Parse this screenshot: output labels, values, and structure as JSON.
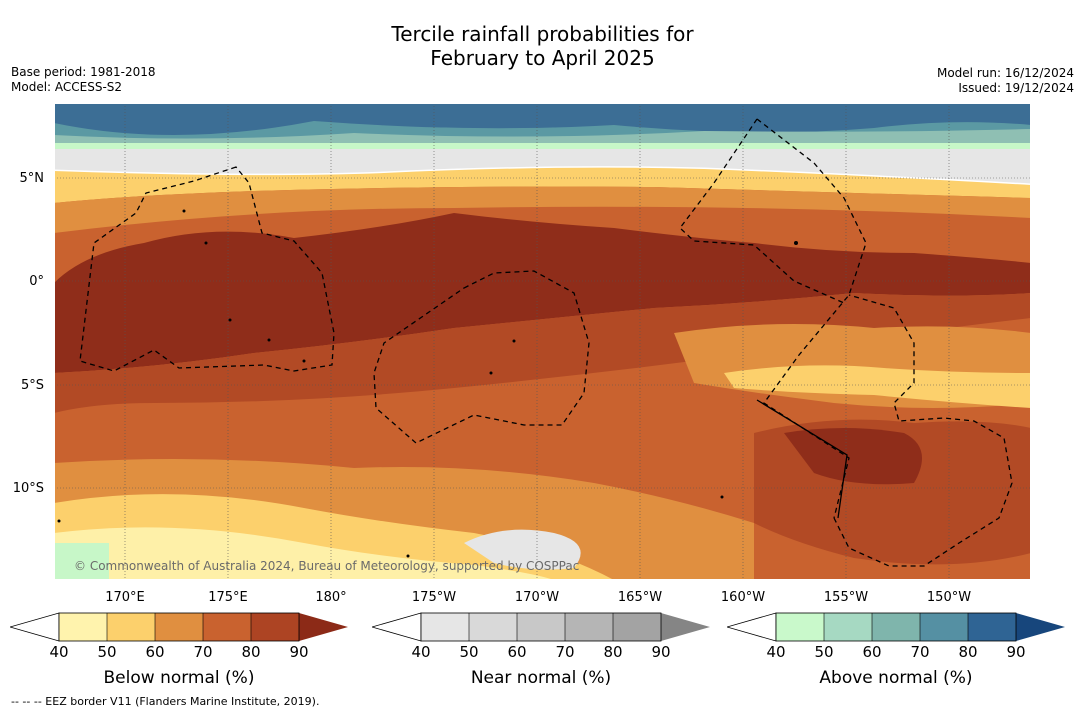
{
  "title": {
    "line1": "Tercile rainfall probabilities for",
    "line2": "February to April 2025"
  },
  "meta": {
    "base_period": "Base period: 1981-2018",
    "model": "Model: ACCESS-S2",
    "model_run": "Model run: 16/12/2024",
    "issued": "Issued: 19/12/2024"
  },
  "map": {
    "lat_labels": [
      "5°N",
      "0°",
      "5°S",
      "10°S"
    ],
    "lon_labels": [
      "170°E",
      "175°E",
      "180°",
      "175°W",
      "170°W",
      "165°W",
      "160°W",
      "155°W",
      "150°W"
    ],
    "attribution": "© Commonwealth of Australia 2024, Bureau of Meteorology, supported by COSPPac",
    "colors": {
      "ocean_brown_90": "#8f2d1a",
      "brown_80": "#b24a25",
      "brown_70": "#c9622f",
      "orange_60": "#e08f40",
      "orange_50": "#fcd06c",
      "yellow_40": "#fef0a8",
      "grey_near": "#e6e6e6",
      "green_50": "#c7f7c8",
      "teal_60": "#8fbfb3",
      "teal_70": "#5b99a3",
      "blue_80": "#3c6e95"
    }
  },
  "colorbars": {
    "below": {
      "title": "Below normal (%)",
      "ticks": [
        "40",
        "50",
        "60",
        "70",
        "80",
        "90"
      ],
      "colors": [
        "#fff3ad",
        "#fcd06c",
        "#e08f40",
        "#c9622f",
        "#ad4423",
        "#8c2a17"
      ]
    },
    "near": {
      "title": "Near normal (%)",
      "ticks": [
        "40",
        "50",
        "60",
        "70",
        "80",
        "90"
      ],
      "colors": [
        "#e6e6e6",
        "#d9d9d9",
        "#c8c8c8",
        "#b5b5b5",
        "#a3a3a3",
        "#858585"
      ]
    },
    "above": {
      "title": "Above normal (%)",
      "ticks": [
        "40",
        "50",
        "60",
        "70",
        "80",
        "90"
      ],
      "colors": [
        "#c9f9cb",
        "#a6d9c2",
        "#7fb5ac",
        "#5590a3",
        "#2f6494",
        "#17467c"
      ]
    }
  },
  "footer": "--  --  -- EEZ border V11 (Flanders Marine Institute, 2019)."
}
